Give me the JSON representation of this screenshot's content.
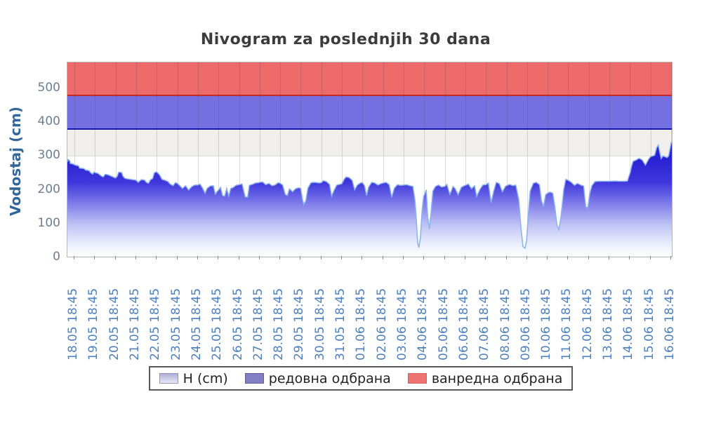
{
  "title": "Nivogram za poslednjih 30 dana",
  "y_axis": {
    "label": "Vodostaj (cm)"
  },
  "legend": {
    "items": [
      {
        "label": "H (cm)"
      },
      {
        "label": "редовна одбрана"
      },
      {
        "label": "ванредна одбрана"
      }
    ]
  },
  "colors": {
    "title": "#3c3c3c",
    "axis_label": "#33669b",
    "y_tick": "#6d7d92",
    "x_tick": "#4d80c0",
    "extraordinary_band": "#ec6a6a",
    "extraordinary_line": "#c62828",
    "regular_band": "#7470e2",
    "regular_line": "#1515b0",
    "background_strip": "#f0efeb",
    "gridline": "rgba(60,60,60,0.18)",
    "series_line": "#8ab2ec",
    "series_fill_top": "#2318d2",
    "series_fill_bottom": "#ffffff"
  },
  "chart_data": {
    "type": "area",
    "title": "Nivogram za poslednjih 30 dana",
    "xlabel": "",
    "ylabel": "Vodostaj (cm)",
    "y_ticks": [
      500,
      400,
      300,
      200,
      100,
      0
    ],
    "ylim": [
      -6,
      577
    ],
    "grid": true,
    "legend_position": "bottom",
    "x_tick_labels": [
      "18.05 18:45",
      "19.05 18:45",
      "20.05 18:45",
      "21.05 18:45",
      "22.05 18:45",
      "23.05 18:45",
      "24.05 18:45",
      "25.05 18:45",
      "26.05 18:45",
      "27.05 18:45",
      "28.05 18:45",
      "29.05 18:45",
      "30.05 18:45",
      "31.05 18:45",
      "01.06 18:45",
      "02.06 18:45",
      "03.06 18:45",
      "04.06 18:45",
      "05.06 18:45",
      "06.06 18:45",
      "07.06 18:45",
      "08.06 18:45",
      "09.06 18:45",
      "10.06 18:45",
      "11.06 18:45",
      "12.06 18:45",
      "13.06 18:45",
      "14.06 18:45",
      "15.06 18:45",
      "16.06 18:45"
    ],
    "x_unit": "days relative to first tick (18.05 18:45)",
    "thresholds": [
      {
        "name": "редовна одбрана",
        "value": 380
      },
      {
        "name": "ванредна одбрана",
        "value": 480
      }
    ],
    "bands": [
      {
        "name": "редовна одбрана",
        "from": 380,
        "to": 480,
        "color": "#7470e2"
      },
      {
        "name": "ванредна одбрана",
        "from": 480,
        "to": 577,
        "color": "#ec6a6a"
      }
    ],
    "series": [
      {
        "name": "H (cm)",
        "points": [
          [
            -0.34,
            282
          ],
          [
            -0.31,
            290
          ],
          [
            -0.27,
            288
          ],
          [
            -0.22,
            285
          ],
          [
            -0.2,
            278
          ],
          [
            -0.05,
            276
          ],
          [
            0,
            274
          ],
          [
            0.1,
            272
          ],
          [
            0.2,
            271
          ],
          [
            0.25,
            264
          ],
          [
            0.45,
            263
          ],
          [
            0.55,
            258
          ],
          [
            0.7,
            257
          ],
          [
            0.8,
            250
          ],
          [
            0.88,
            246
          ],
          [
            0.95,
            252
          ],
          [
            1,
            251
          ],
          [
            1.15,
            248
          ],
          [
            1.3,
            241
          ],
          [
            1.4,
            238
          ],
          [
            1.5,
            246
          ],
          [
            1.65,
            244
          ],
          [
            1.8,
            240
          ],
          [
            1.95,
            236
          ],
          [
            2,
            235
          ],
          [
            2.08,
            240
          ],
          [
            2.15,
            252
          ],
          [
            2.3,
            251
          ],
          [
            2.35,
            241
          ],
          [
            2.45,
            234
          ],
          [
            2.6,
            232
          ],
          [
            2.8,
            230
          ],
          [
            2.95,
            229
          ],
          [
            3,
            228
          ],
          [
            3.1,
            222
          ],
          [
            3.25,
            230
          ],
          [
            3.4,
            229
          ],
          [
            3.5,
            222
          ],
          [
            3.6,
            219
          ],
          [
            3.7,
            230
          ],
          [
            3.8,
            233
          ],
          [
            3.88,
            250
          ],
          [
            3.98,
            253
          ],
          [
            4.05,
            250
          ],
          [
            4.15,
            243
          ],
          [
            4.25,
            231
          ],
          [
            4.4,
            228
          ],
          [
            4.55,
            224
          ],
          [
            4.65,
            217
          ],
          [
            4.8,
            212
          ],
          [
            4.9,
            221
          ],
          [
            5,
            219
          ],
          [
            5.12,
            212
          ],
          [
            5.25,
            204
          ],
          [
            5.4,
            212
          ],
          [
            5.55,
            199
          ],
          [
            5.7,
            209
          ],
          [
            5.85,
            214
          ],
          [
            6,
            214
          ],
          [
            6.1,
            217
          ],
          [
            6.22,
            206
          ],
          [
            6.35,
            190
          ],
          [
            6.45,
            204
          ],
          [
            6.6,
            211
          ],
          [
            6.75,
            212
          ],
          [
            6.85,
            187
          ],
          [
            6.95,
            196
          ],
          [
            7,
            199
          ],
          [
            7.1,
            207
          ],
          [
            7.2,
            183
          ],
          [
            7.3,
            181
          ],
          [
            7.4,
            204
          ],
          [
            7.5,
            181
          ],
          [
            7.6,
            204
          ],
          [
            7.7,
            206
          ],
          [
            7.85,
            213
          ],
          [
            8,
            215
          ],
          [
            8.15,
            217
          ],
          [
            8.3,
            179
          ],
          [
            8.42,
            178
          ],
          [
            8.5,
            213
          ],
          [
            8.65,
            216
          ],
          [
            8.8,
            220
          ],
          [
            8.95,
            221
          ],
          [
            9,
            222
          ],
          [
            9.15,
            223
          ],
          [
            9.3,
            215
          ],
          [
            9.45,
            219
          ],
          [
            9.6,
            212
          ],
          [
            9.75,
            214
          ],
          [
            9.9,
            221
          ],
          [
            10,
            219
          ],
          [
            10.12,
            214
          ],
          [
            10.25,
            186
          ],
          [
            10.35,
            183
          ],
          [
            10.45,
            203
          ],
          [
            10.6,
            194
          ],
          [
            10.75,
            203
          ],
          [
            10.9,
            206
          ],
          [
            11,
            204
          ],
          [
            11.08,
            173
          ],
          [
            11.15,
            156
          ],
          [
            11.25,
            168
          ],
          [
            11.35,
            205
          ],
          [
            11.5,
            221
          ],
          [
            11.7,
            222
          ],
          [
            11.9,
            220
          ],
          [
            12,
            221
          ],
          [
            12.1,
            227
          ],
          [
            12.25,
            224
          ],
          [
            12.4,
            216
          ],
          [
            12.5,
            181
          ],
          [
            12.6,
            196
          ],
          [
            12.75,
            214
          ],
          [
            12.9,
            216
          ],
          [
            13,
            218
          ],
          [
            13.1,
            230
          ],
          [
            13.2,
            238
          ],
          [
            13.35,
            236
          ],
          [
            13.5,
            228
          ],
          [
            13.62,
            200
          ],
          [
            13.75,
            214
          ],
          [
            13.9,
            220
          ],
          [
            14,
            221
          ],
          [
            14.1,
            212
          ],
          [
            14.2,
            183
          ],
          [
            14.3,
            208
          ],
          [
            14.45,
            222
          ],
          [
            14.6,
            220
          ],
          [
            14.75,
            214
          ],
          [
            14.9,
            218
          ],
          [
            15,
            220
          ],
          [
            15.15,
            222
          ],
          [
            15.3,
            215
          ],
          [
            15.42,
            178
          ],
          [
            15.55,
            205
          ],
          [
            15.7,
            215
          ],
          [
            15.85,
            213
          ],
          [
            16,
            214
          ],
          [
            16.15,
            215
          ],
          [
            16.3,
            212
          ],
          [
            16.45,
            210
          ],
          [
            16.55,
            170
          ],
          [
            16.62,
            110
          ],
          [
            16.68,
            45
          ],
          [
            16.74,
            29
          ],
          [
            16.82,
            60
          ],
          [
            16.9,
            140
          ],
          [
            16.97,
            180
          ],
          [
            17,
            184
          ],
          [
            17.1,
            200
          ],
          [
            17.17,
            120
          ],
          [
            17.25,
            84
          ],
          [
            17.33,
            130
          ],
          [
            17.42,
            196
          ],
          [
            17.55,
            210
          ],
          [
            17.7,
            214
          ],
          [
            17.85,
            208
          ],
          [
            18,
            210
          ],
          [
            18.1,
            216
          ],
          [
            18.25,
            186
          ],
          [
            18.4,
            210
          ],
          [
            18.5,
            204
          ],
          [
            18.65,
            185
          ],
          [
            18.8,
            207
          ],
          [
            18.95,
            212
          ],
          [
            19,
            213
          ],
          [
            19.15,
            217
          ],
          [
            19.3,
            203
          ],
          [
            19.45,
            212
          ],
          [
            19.55,
            180
          ],
          [
            19.7,
            200
          ],
          [
            19.85,
            214
          ],
          [
            20,
            215
          ],
          [
            20.12,
            220
          ],
          [
            20.25,
            162
          ],
          [
            20.38,
            196
          ],
          [
            20.5,
            222
          ],
          [
            20.65,
            218
          ],
          [
            20.8,
            194
          ],
          [
            20.95,
            210
          ],
          [
            21,
            212
          ],
          [
            21.15,
            216
          ],
          [
            21.3,
            212
          ],
          [
            21.45,
            214
          ],
          [
            21.6,
            170
          ],
          [
            21.7,
            90
          ],
          [
            21.8,
            32
          ],
          [
            21.9,
            27
          ],
          [
            21.98,
            50
          ],
          [
            22.05,
            120
          ],
          [
            22.15,
            196
          ],
          [
            22.3,
            219
          ],
          [
            22.45,
            222
          ],
          [
            22.6,
            215
          ],
          [
            22.7,
            168
          ],
          [
            22.8,
            150
          ],
          [
            22.9,
            185
          ],
          [
            23,
            190
          ],
          [
            23.1,
            193
          ],
          [
            23.25,
            190
          ],
          [
            23.35,
            150
          ],
          [
            23.45,
            95
          ],
          [
            23.55,
            83
          ],
          [
            23.65,
            120
          ],
          [
            23.78,
            200
          ],
          [
            23.88,
            231
          ],
          [
            24,
            228
          ],
          [
            24.15,
            222
          ],
          [
            24.3,
            213
          ],
          [
            24.45,
            219
          ],
          [
            24.6,
            214
          ],
          [
            24.75,
            211
          ],
          [
            24.85,
            150
          ],
          [
            24.95,
            146
          ],
          [
            25.05,
            190
          ],
          [
            25.15,
            212
          ],
          [
            25.3,
            224
          ],
          [
            25.5,
            225
          ],
          [
            25.75,
            225
          ],
          [
            26,
            225
          ],
          [
            26.25,
            226
          ],
          [
            26.5,
            225
          ],
          [
            26.75,
            225
          ],
          [
            26.88,
            226
          ],
          [
            26.95,
            240
          ],
          [
            27.02,
            252
          ],
          [
            27.08,
            270
          ],
          [
            27.15,
            284
          ],
          [
            27.3,
            288
          ],
          [
            27.45,
            293
          ],
          [
            27.6,
            288
          ],
          [
            27.75,
            273
          ],
          [
            27.9,
            290
          ],
          [
            28,
            298
          ],
          [
            28.1,
            300
          ],
          [
            28.2,
            302
          ],
          [
            28.3,
            325
          ],
          [
            28.38,
            332
          ],
          [
            28.45,
            310
          ],
          [
            28.52,
            292
          ],
          [
            28.6,
            300
          ],
          [
            28.7,
            298
          ],
          [
            28.8,
            295
          ],
          [
            28.88,
            300
          ],
          [
            28.95,
            322
          ],
          [
            29,
            340
          ],
          [
            29.05,
            338
          ],
          [
            29.1,
            334
          ]
        ]
      }
    ]
  }
}
